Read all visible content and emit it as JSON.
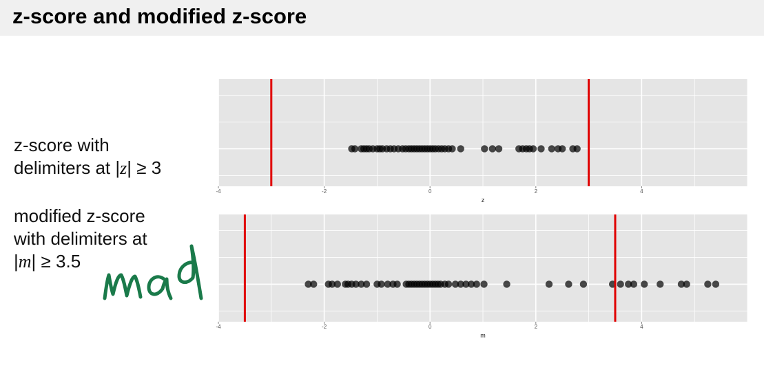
{
  "slide": {
    "title": "z-score and modified z-score"
  },
  "captions": {
    "zscore": {
      "line1": "z-score with",
      "line2_pre": "delimiters at |",
      "line2_var": "z",
      "line2_post": "| ≥ 3"
    },
    "modified": {
      "line1": "modified z-score",
      "line2": "with delimiters at",
      "line3_pre": "|",
      "line3_var": "m",
      "line3_post": "| ≥ 3.5"
    }
  },
  "handwritten_note": "mad",
  "colors": {
    "panel": "#e5e5e5",
    "grid": "#ffffff",
    "point": "#000000",
    "threshold": "#e00000",
    "ink": "#1a7a4a"
  },
  "chart_data": [
    {
      "type": "scatter",
      "xlabel": "z",
      "xlim": [
        -4,
        6
      ],
      "xticks": [
        -4,
        -2,
        0,
        2,
        4
      ],
      "tick_labels": [
        "-4",
        "-2",
        "0",
        "2",
        "4"
      ],
      "grid": true,
      "thresholds": [
        -3,
        3
      ],
      "x": [
        -1.48,
        -1.42,
        -1.3,
        -1.25,
        -1.2,
        -1.15,
        -1.08,
        -1.0,
        -0.95,
        -0.9,
        -0.82,
        -0.75,
        -0.68,
        -0.6,
        -0.52,
        -0.46,
        -0.4,
        -0.35,
        -0.3,
        -0.25,
        -0.2,
        -0.15,
        -0.1,
        -0.05,
        0.0,
        0.05,
        0.1,
        0.16,
        0.22,
        0.28,
        0.35,
        0.42,
        0.58,
        1.03,
        1.18,
        1.3,
        1.68,
        1.75,
        1.82,
        1.88,
        1.95,
        2.1,
        2.3,
        2.42,
        2.5,
        2.7,
        2.78
      ],
      "y": [
        0,
        0,
        0,
        0,
        0,
        0,
        0,
        0,
        0,
        0,
        0,
        0,
        0,
        0,
        0,
        0,
        0,
        0,
        0,
        0,
        0,
        0,
        0,
        0,
        0,
        0,
        0,
        0,
        0,
        0,
        0,
        0,
        0,
        0,
        0,
        0,
        0,
        0,
        0,
        0,
        0,
        0,
        0,
        0,
        0,
        0,
        0
      ]
    },
    {
      "type": "scatter",
      "xlabel": "m",
      "xlim": [
        -4,
        6
      ],
      "xticks": [
        -4,
        -2,
        0,
        2,
        4
      ],
      "tick_labels": [
        "-4",
        "-2",
        "0",
        "2",
        "4"
      ],
      "grid": true,
      "thresholds": [
        -3.5,
        3.5
      ],
      "x": [
        -2.3,
        -2.2,
        -1.92,
        -1.85,
        -1.75,
        -1.6,
        -1.55,
        -1.48,
        -1.4,
        -1.3,
        -1.2,
        -1.0,
        -0.92,
        -0.8,
        -0.7,
        -0.62,
        -0.45,
        -0.4,
        -0.35,
        -0.3,
        -0.25,
        -0.2,
        -0.15,
        -0.1,
        -0.05,
        0.0,
        0.05,
        0.1,
        0.15,
        0.2,
        0.28,
        0.35,
        0.48,
        0.58,
        0.68,
        0.78,
        0.88,
        1.02,
        1.45,
        2.25,
        2.62,
        2.9,
        3.45,
        3.6,
        3.75,
        3.85,
        4.05,
        4.35,
        4.75,
        4.85,
        5.25,
        5.4
      ],
      "y": [
        0,
        0,
        0,
        0,
        0,
        0,
        0,
        0,
        0,
        0,
        0,
        0,
        0,
        0,
        0,
        0,
        0,
        0,
        0,
        0,
        0,
        0,
        0,
        0,
        0,
        0,
        0,
        0,
        0,
        0,
        0,
        0,
        0,
        0,
        0,
        0,
        0,
        0,
        0,
        0,
        0,
        0,
        0,
        0,
        0,
        0,
        0,
        0,
        0,
        0,
        0,
        0
      ]
    }
  ]
}
